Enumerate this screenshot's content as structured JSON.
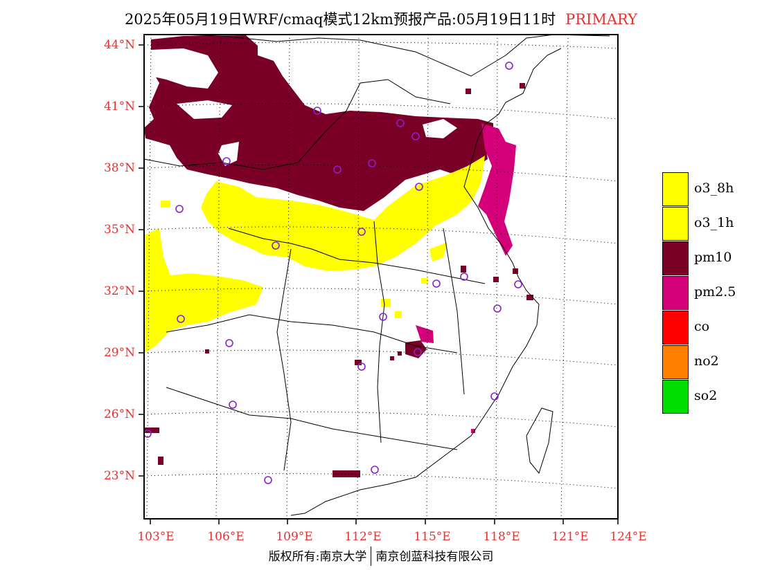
{
  "title": {
    "text": "2025年05月19日WRF/cmaq模式12km预报产品:05月19日11时",
    "product": "PRIMARY"
  },
  "axes": {
    "lat_labels": [
      "44°N",
      "41°N",
      "38°N",
      "35°N",
      "32°N",
      "29°N",
      "26°N",
      "23°N"
    ],
    "lon_labels": [
      "103°E",
      "106°E",
      "109°E",
      "112°E",
      "115°E",
      "118°E",
      "121°E",
      "124°E"
    ],
    "label_color": "#e83030"
  },
  "legend": [
    {
      "label": "o3_8h",
      "color": "#ffff00"
    },
    {
      "label": "o3_1h",
      "color": "#ffff00"
    },
    {
      "label": "pm10",
      "color": "#7a0028"
    },
    {
      "label": "pm2.5",
      "color": "#d3007a"
    },
    {
      "label": "co",
      "color": "#ff0000"
    },
    {
      "label": "no2",
      "color": "#ff7f00"
    },
    {
      "label": "so2",
      "color": "#00dd00"
    }
  ],
  "copyright": {
    "left": "版权所有:南京大学",
    "right": "南京创蓝科技有限公司"
  }
}
